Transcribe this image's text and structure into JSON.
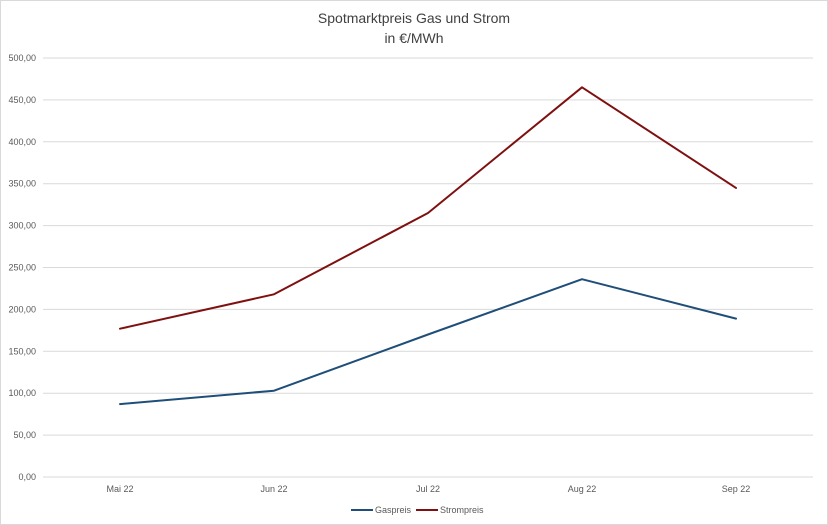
{
  "chart_data": {
    "type": "line",
    "title": "Spotmarktpreis Gas und Strom",
    "subtitle": "in €/MWh",
    "xlabel": "",
    "ylabel": "",
    "categories": [
      "Mai 22",
      "Jun 22",
      "Jul 22",
      "Aug 22",
      "Sep 22"
    ],
    "ylim": [
      0,
      500
    ],
    "ytick_values": [
      0,
      50,
      100,
      150,
      200,
      250,
      300,
      350,
      400,
      450,
      500
    ],
    "ytick_labels": [
      "0,00",
      "50,00",
      "100,00",
      "150,00",
      "200,00",
      "250,00",
      "300,00",
      "350,00",
      "400,00",
      "450,00",
      "500,00"
    ],
    "grid": true,
    "legend_position": "bottom",
    "series": [
      {
        "name": "Gaspreis",
        "color": "#1f4e79",
        "values": [
          87,
          103,
          170,
          236,
          189
        ]
      },
      {
        "name": "Strompreis",
        "color": "#7f1010",
        "values": [
          177,
          218,
          315,
          465,
          345
        ]
      }
    ]
  }
}
